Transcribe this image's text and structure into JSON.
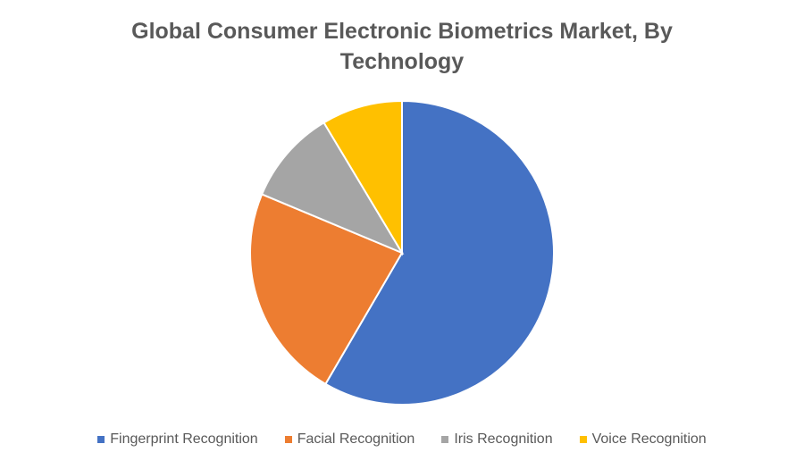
{
  "chart_data": {
    "type": "pie",
    "title": "Global Consumer Electronic Biometrics Market, By Technology",
    "categories": [
      "Fingerprint Recognition",
      "Facial Recognition",
      "Iris Recognition",
      "Voice Recognition"
    ],
    "values": [
      58.4,
      22.9,
      10.1,
      8.6
    ],
    "colors": [
      "#4472c4",
      "#ed7d31",
      "#a5a5a5",
      "#ffc000"
    ],
    "legend": "bottom"
  }
}
